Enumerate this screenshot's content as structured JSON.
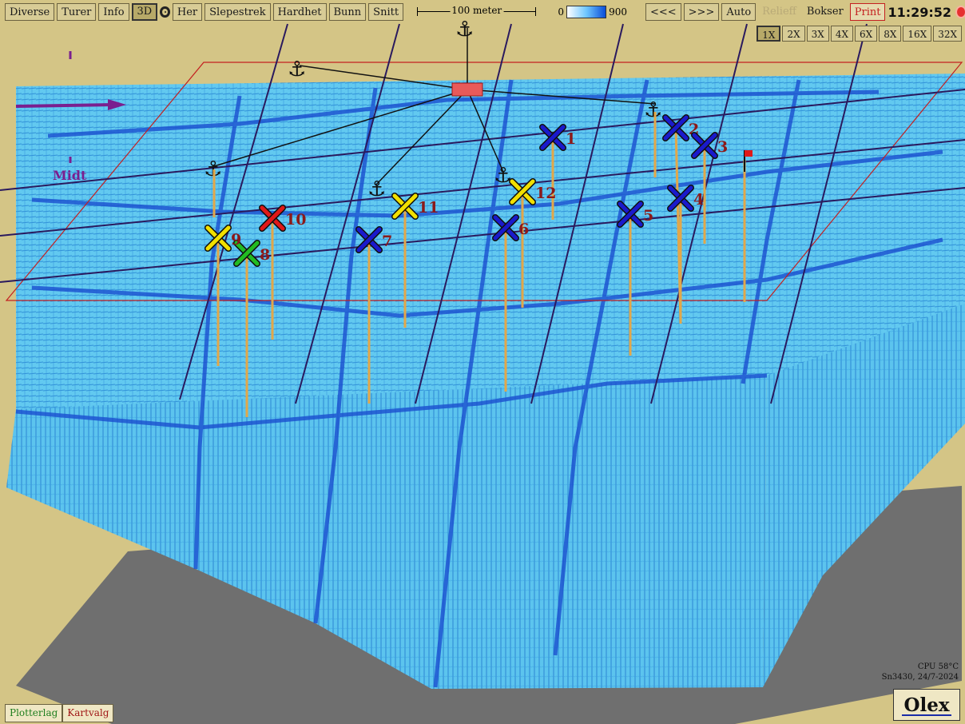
{
  "toolbar": {
    "diverse": "Diverse",
    "turer": "Turer",
    "info": "Info",
    "mode_3d": "3D",
    "her": "Her",
    "slepestrek": "Slepestrek",
    "hardhet": "Hardhet",
    "bunn": "Bunn",
    "snitt": "Snitt",
    "scale_label": "100 meter",
    "depth_min": "0",
    "depth_max": "900",
    "prev": "<<<",
    "next": ">>>",
    "auto": "Auto",
    "relieff": "Relieff",
    "bokser": "Bokser",
    "print": "Print",
    "time": "11:29:52"
  },
  "zoom": [
    "1X",
    "2X",
    "3X",
    "4X",
    "6X",
    "8X",
    "16X",
    "32X"
  ],
  "zoom_selected": "1X",
  "markers": [
    {
      "num": "1",
      "color": "blue"
    },
    {
      "num": "2",
      "color": "blue"
    },
    {
      "num": "3",
      "color": "blue"
    },
    {
      "num": "4",
      "color": "blue"
    },
    {
      "num": "5",
      "color": "blue"
    },
    {
      "num": "6",
      "color": "blue"
    },
    {
      "num": "7",
      "color": "blue"
    },
    {
      "num": "8",
      "color": "green"
    },
    {
      "num": "9",
      "color": "yellow"
    },
    {
      "num": "10",
      "color": "red"
    },
    {
      "num": "11",
      "color": "yellow"
    },
    {
      "num": "12",
      "color": "yellow"
    }
  ],
  "marker_colors": {
    "blue": "#1a1acc",
    "green": "#22bb22",
    "yellow": "#f2e000",
    "red": "#e01818"
  },
  "compass_label": "Midt",
  "status": {
    "cpu": "CPU 58°C",
    "serial": "Sn3430, 24/7-2024"
  },
  "brand": "Olex",
  "tabs": {
    "plotterlag": "Plotterlag",
    "kartvalg": "Kartvalg"
  },
  "colors": {
    "background": "#d4c586",
    "terrain": "#5cc6ee",
    "grid": "#1a4fd0",
    "track": "#2a1a5e",
    "shadow": "#6e6e6e"
  }
}
